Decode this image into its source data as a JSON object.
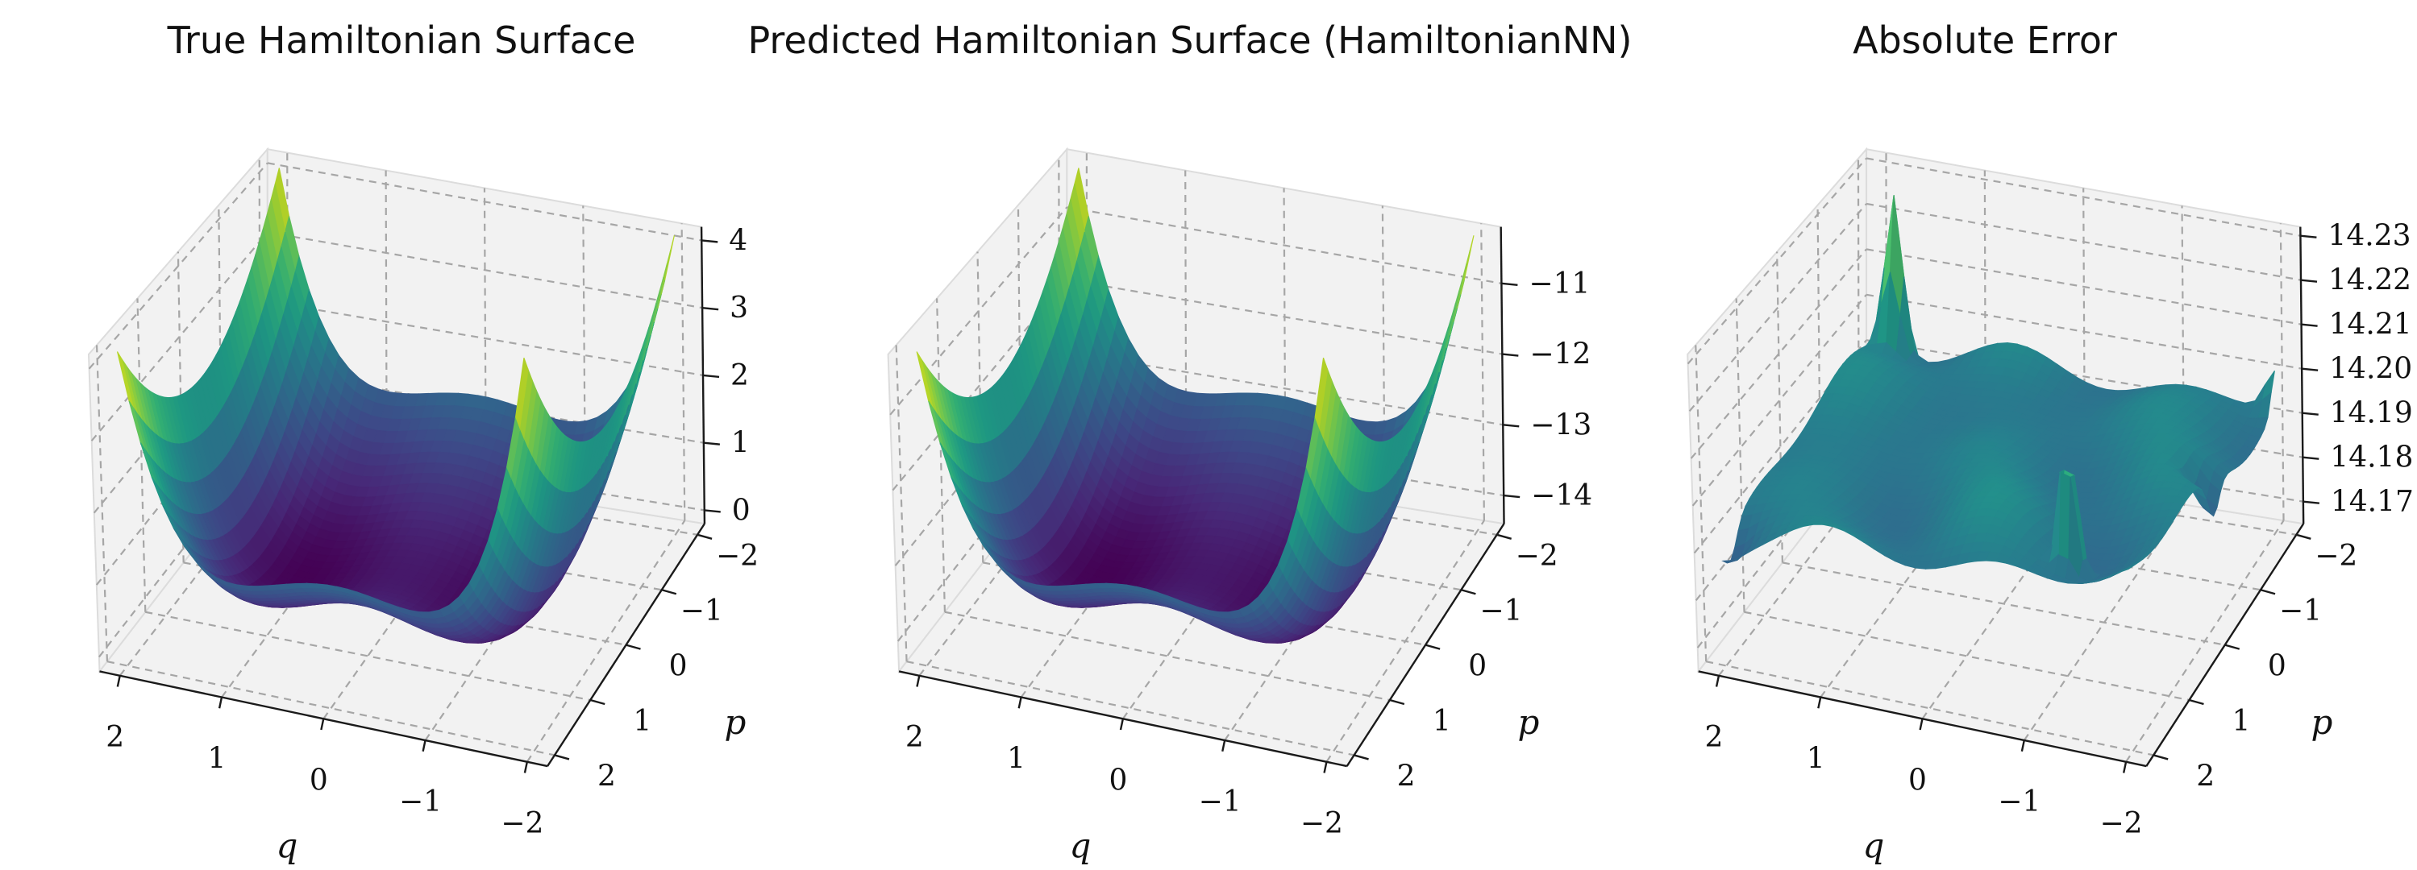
{
  "chart_data": [
    {
      "type": "surface",
      "title": "True Hamiltonian Surface",
      "xlabel": "q",
      "ylabel": "p",
      "x_ticks": [
        "2",
        "1",
        "0",
        "−1",
        "−2"
      ],
      "y_ticks": [
        "−2",
        "−1",
        "0",
        "1",
        "2"
      ],
      "z_ticks": [
        "0",
        "1",
        "2",
        "3",
        "4"
      ],
      "xlim": [
        -2.2,
        2.2
      ],
      "ylim": [
        -2.2,
        2.2
      ],
      "zlim": [
        -0.2,
        4.2
      ],
      "function": "H(q,p) = p^2/2 + (q^2 - 1)^2 / 2 with depth from both q and p",
      "colormap": "viridis",
      "grid": true
    },
    {
      "type": "surface",
      "title": "Predicted Hamiltonian Surface (HamiltonianNN)",
      "xlabel": "q",
      "ylabel": "p",
      "x_ticks": [
        "2",
        "1",
        "0",
        "−1",
        "−2"
      ],
      "y_ticks": [
        "−2",
        "−1",
        "0",
        "1",
        "2"
      ],
      "z_ticks": [
        "−11",
        "−12",
        "−13",
        "−14"
      ],
      "xlim": [
        -2.2,
        2.2
      ],
      "ylim": [
        -2.2,
        2.2
      ],
      "zlim": [
        -14.4,
        -10.2
      ],
      "colormap": "viridis",
      "grid": true
    },
    {
      "type": "surface",
      "title": "Absolute Error",
      "xlabel": "q",
      "ylabel": "p",
      "x_ticks": [
        "2",
        "1",
        "0",
        "−1",
        "−2"
      ],
      "y_ticks": [
        "−2",
        "−1",
        "0",
        "1",
        "2"
      ],
      "z_ticks": [
        "14.23",
        "14.22",
        "14.21",
        "14.20",
        "14.19",
        "14.18",
        "14.17"
      ],
      "xlim": [
        -2.2,
        2.2
      ],
      "ylim": [
        -2.2,
        2.2
      ],
      "zlim": [
        14.165,
        14.232
      ],
      "colormap": "viridis",
      "grid": true
    }
  ],
  "colors": {
    "pane": "#f2f2f2",
    "grid": "#a6a6a6",
    "axis": "#1a1a1a",
    "viridis": [
      "#440154",
      "#482878",
      "#3e4989",
      "#31688e",
      "#26828e",
      "#1f9e89",
      "#35b779",
      "#6ece58",
      "#b5de2b",
      "#fde725"
    ]
  }
}
